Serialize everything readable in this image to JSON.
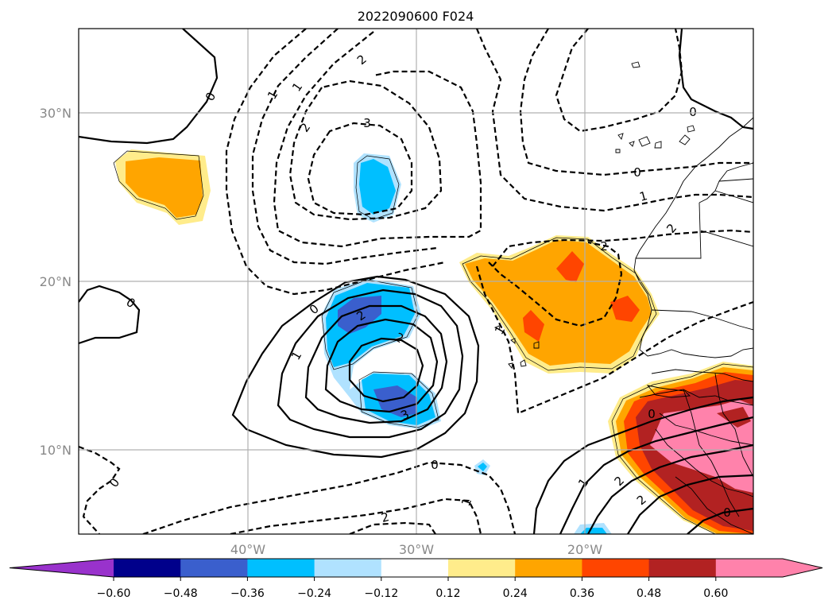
{
  "title": "2022090600 F024",
  "map": {
    "lat_labels": [
      "30°N",
      "20°N",
      "10°N"
    ],
    "lon_labels": [
      "40°W",
      "30°W",
      "20°W"
    ],
    "contour_labels": [
      "0",
      "1",
      "2",
      "3",
      "2",
      "1",
      "0",
      "2",
      "0",
      "1",
      "2",
      "3",
      "2",
      "1",
      "0",
      "0",
      "1",
      "2",
      "0",
      "2",
      "0",
      "1",
      "2",
      "1",
      "2",
      "0",
      "0"
    ]
  },
  "colorbar": {
    "ticks": [
      "−0.60",
      "−0.48",
      "−0.36",
      "−0.24",
      "−0.12",
      "0.12",
      "0.24",
      "0.36",
      "0.48",
      "0.60"
    ],
    "colors": [
      "#9932cc",
      "#00008b",
      "#3a5fcd",
      "#00bfff",
      "#b0e2ff",
      "#ffffff",
      "#ffec8b",
      "#ffa500",
      "#ff4500",
      "#b22222",
      "#ff82ab",
      "#ff82ab"
    ],
    "extend": "both"
  },
  "fill_colors": {
    "blue_light": "#b0e2ff",
    "blue": "#00bfff",
    "blue_dark": "#3a5fcd",
    "yellow": "#ffec8b",
    "orange": "#ffa500",
    "red_orange": "#ff4500",
    "dark_red": "#b22222",
    "pink": "#ff82ab"
  }
}
